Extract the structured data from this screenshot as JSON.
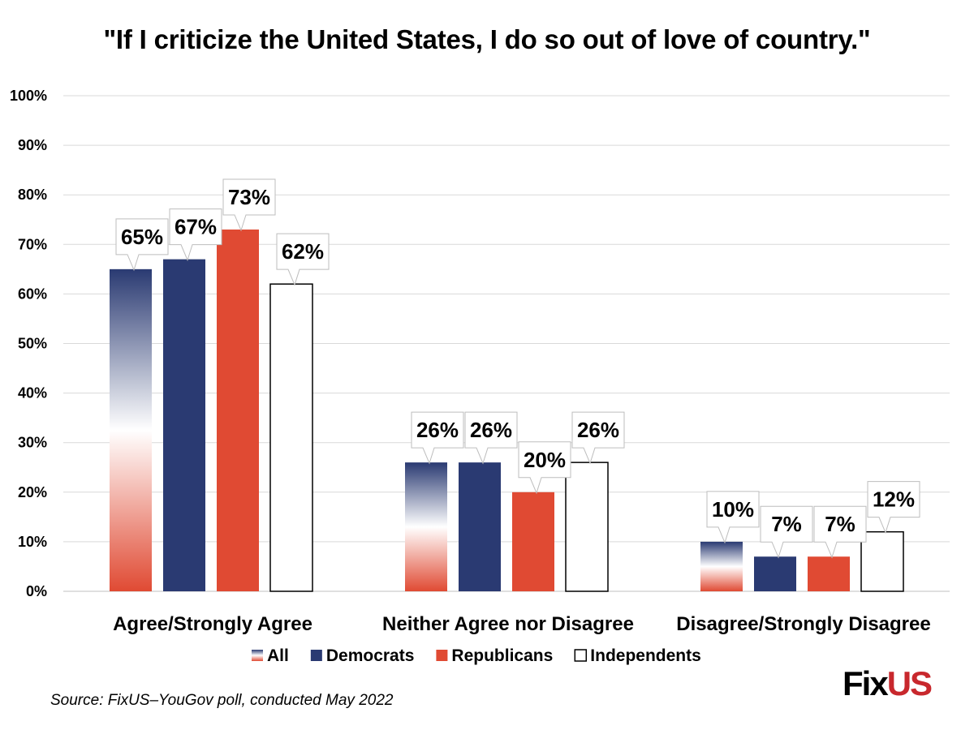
{
  "title": "\"If I criticize the United States, I do so out of love of country.\"",
  "source": "Source: FixUS–YouGov poll, conducted May 2022",
  "logo": {
    "text_primary": "Fix",
    "text_accent": "US"
  },
  "chart_data": {
    "type": "bar",
    "categories": [
      "Agree/Strongly Agree",
      "Neither Agree nor Disagree",
      "Disagree/Strongly Disagree"
    ],
    "series": [
      {
        "name": "All",
        "values": [
          65,
          26,
          10
        ],
        "labels": [
          "65%",
          "26%",
          "10%"
        ],
        "style": "gradient",
        "colors": [
          "#2a3a72",
          "#ffffff",
          "#e04a33"
        ]
      },
      {
        "name": "Democrats",
        "values": [
          67,
          26,
          7
        ],
        "labels": [
          "67%",
          "26%",
          "7%"
        ],
        "style": "solid",
        "colors": [
          "#2a3a72"
        ]
      },
      {
        "name": "Republicans",
        "values": [
          73,
          20,
          7
        ],
        "labels": [
          "73%",
          "20%",
          "7%"
        ],
        "style": "solid",
        "colors": [
          "#e04a33"
        ]
      },
      {
        "name": "Independents",
        "values": [
          62,
          26,
          12
        ],
        "labels": [
          "62%",
          "26%",
          "12%"
        ],
        "style": "outline",
        "colors": [
          "#ffffff"
        ]
      }
    ],
    "y_ticks": [
      "0%",
      "10%",
      "20%",
      "30%",
      "40%",
      "50%",
      "60%",
      "70%",
      "80%",
      "90%",
      "100%"
    ],
    "ylim": [
      0,
      100
    ],
    "grid": true,
    "legend_position": "bottom",
    "xlabel": "",
    "ylabel": ""
  }
}
